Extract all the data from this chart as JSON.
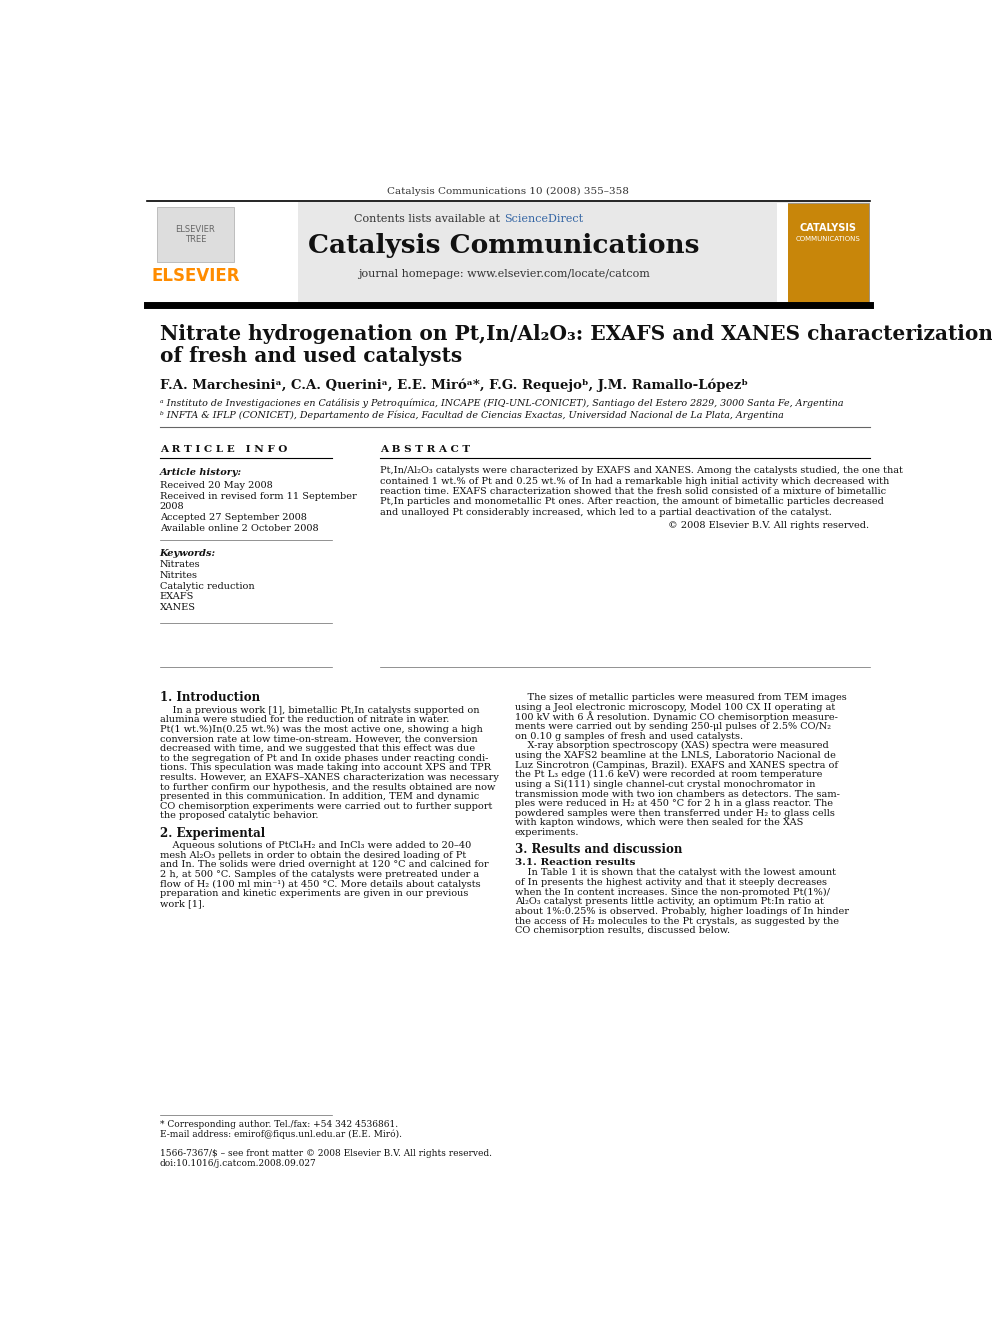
{
  "journal_ref": "Catalysis Communications 10 (2008) 355–358",
  "contents_line": "Contents lists available at ScienceDirect",
  "sciencedirect_color": "#3465a4",
  "journal_name": "Catalysis Communications",
  "journal_homepage": "journal homepage: www.elsevier.com/locate/catcom",
  "header_bg": "#e8e8e8",
  "elsevier_color": "#ff8c00",
  "title_line1": "Nitrate hydrogenation on Pt,In/Al₂O₃: EXAFS and XANES characterization",
  "title_line2": "of fresh and used catalysts",
  "authors": "F.A. Marchesiniᵃ, C.A. Queriniᵃ, E.E. Miróᵃ*, F.G. Requejoᵇ, J.M. Ramallo-Lópezᵇ",
  "affil_a": "ᵃ Instituto de Investigaciones en Catálisis y Petroquímica, INCAPE (FIQ-UNL-CONICET), Santiago del Estero 2829, 3000 Santa Fe, Argentina",
  "affil_b": "ᵇ INFTA & IFLP (CONICET), Departamento de Física, Facultad de Ciencias Exactas, Universidad Nacional de La Plata, Argentina",
  "article_info_label": "A R T I C L E   I N F O",
  "abstract_label": "A B S T R A C T",
  "article_history_label": "Article history:",
  "received1": "Received 20 May 2008",
  "received2": "Received in revised form 11 September",
  "received2b": "2008",
  "accepted": "Accepted 27 September 2008",
  "available": "Available online 2 October 2008",
  "keywords_label": "Keywords:",
  "keywords": [
    "Nitrates",
    "Nitrites",
    "Catalytic reduction",
    "EXAFS",
    "XANES"
  ],
  "copyright": "© 2008 Elsevier B.V. All rights reserved.",
  "intro_heading": "1. Introduction",
  "experimental_heading": "2. Experimental",
  "results_heading": "3. Results and discussion",
  "results_subheading": "3.1. Reaction results",
  "footnote_star": "* Corresponding author. Tel./fax: +54 342 4536861.",
  "footnote_email": "E-mail address: emirof@fiqus.unl.edu.ar (E.E. Miró).",
  "issn_line": "1566-7367/$ – see front matter © 2008 Elsevier B.V. All rights reserved.",
  "doi_line": "doi:10.1016/j.catcom.2008.09.027",
  "bg_color": "#ffffff",
  "text_color": "#000000"
}
